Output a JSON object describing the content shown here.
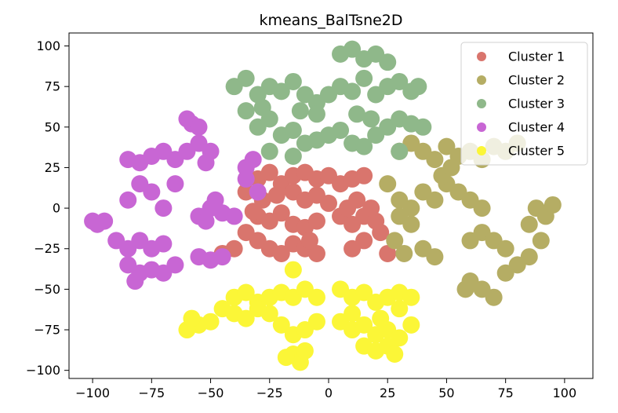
{
  "chart_data": {
    "type": "scatter",
    "title": "kmeans_BalTsne2D",
    "xlabel": "",
    "ylabel": "",
    "xlim": [
      -110,
      112
    ],
    "ylim": [
      -105,
      108
    ],
    "xticks": [
      -100,
      -75,
      -50,
      -25,
      0,
      25,
      50,
      75,
      100
    ],
    "yticks": [
      100,
      75,
      50,
      25,
      0,
      -25,
      -50,
      -75,
      -100
    ],
    "xtick_labels": [
      "−100",
      "−75",
      "−50",
      "−25",
      "0",
      "25",
      "50",
      "75",
      "100"
    ],
    "ytick_labels": [
      "100",
      "75",
      "50",
      "25",
      "0",
      "−25",
      "−50",
      "−75",
      "−100"
    ],
    "grid": false,
    "legend_position": "top-right",
    "series": [
      {
        "name": "Cluster 1",
        "color": "#d9756d",
        "points": [
          [
            -30,
            18
          ],
          [
            -25,
            22
          ],
          [
            -20,
            15
          ],
          [
            -15,
            20
          ],
          [
            -10,
            22
          ],
          [
            -5,
            18
          ],
          [
            0,
            20
          ],
          [
            5,
            15
          ],
          [
            10,
            18
          ],
          [
            15,
            20
          ],
          [
            -28,
            5
          ],
          [
            -22,
            8
          ],
          [
            -15,
            10
          ],
          [
            -10,
            5
          ],
          [
            -5,
            8
          ],
          [
            0,
            3
          ],
          [
            -30,
            -5
          ],
          [
            -25,
            -8
          ],
          [
            -20,
            -3
          ],
          [
            -15,
            -10
          ],
          [
            -10,
            -12
          ],
          [
            -5,
            -8
          ],
          [
            -35,
            -15
          ],
          [
            -30,
            -20
          ],
          [
            -25,
            -25
          ],
          [
            -20,
            -28
          ],
          [
            -15,
            -22
          ],
          [
            -10,
            -25
          ],
          [
            -5,
            -28
          ],
          [
            -40,
            -25
          ],
          [
            -45,
            -28
          ],
          [
            5,
            -5
          ],
          [
            10,
            -10
          ],
          [
            15,
            -5
          ],
          [
            20,
            -8
          ],
          [
            8,
            0
          ],
          [
            12,
            5
          ],
          [
            18,
            0
          ],
          [
            22,
            -15
          ],
          [
            15,
            -20
          ],
          [
            10,
            -25
          ],
          [
            25,
            -28
          ],
          [
            -35,
            10
          ],
          [
            -32,
            -2
          ],
          [
            -8,
            -20
          ]
        ]
      },
      {
        "name": "Cluster 2",
        "color": "#b5ad64",
        "points": [
          [
            30,
            35
          ],
          [
            35,
            40
          ],
          [
            40,
            35
          ],
          [
            45,
            30
          ],
          [
            50,
            38
          ],
          [
            55,
            32
          ],
          [
            60,
            35
          ],
          [
            65,
            30
          ],
          [
            70,
            38
          ],
          [
            75,
            35
          ],
          [
            80,
            40
          ],
          [
            25,
            15
          ],
          [
            30,
            5
          ],
          [
            35,
            0
          ],
          [
            40,
            10
          ],
          [
            45,
            5
          ],
          [
            50,
            15
          ],
          [
            55,
            10
          ],
          [
            60,
            5
          ],
          [
            65,
            0
          ],
          [
            30,
            -5
          ],
          [
            35,
            -10
          ],
          [
            28,
            -20
          ],
          [
            32,
            -28
          ],
          [
            40,
            -25
          ],
          [
            45,
            -30
          ],
          [
            60,
            -20
          ],
          [
            65,
            -15
          ],
          [
            70,
            -20
          ],
          [
            75,
            -25
          ],
          [
            85,
            -10
          ],
          [
            88,
            0
          ],
          [
            92,
            -5
          ],
          [
            95,
            2
          ],
          [
            90,
            -20
          ],
          [
            85,
            -30
          ],
          [
            80,
            -35
          ],
          [
            60,
            -45
          ],
          [
            65,
            -50
          ],
          [
            70,
            -55
          ],
          [
            58,
            -50
          ],
          [
            75,
            -40
          ],
          [
            48,
            20
          ],
          [
            52,
            25
          ]
        ]
      },
      {
        "name": "Cluster 3",
        "color": "#8fb88a",
        "points": [
          [
            -40,
            75
          ],
          [
            -35,
            80
          ],
          [
            -30,
            70
          ],
          [
            -25,
            75
          ],
          [
            -20,
            72
          ],
          [
            -15,
            78
          ],
          [
            -10,
            70
          ],
          [
            -5,
            65
          ],
          [
            0,
            70
          ],
          [
            5,
            75
          ],
          [
            10,
            72
          ],
          [
            15,
            80
          ],
          [
            20,
            70
          ],
          [
            25,
            75
          ],
          [
            30,
            78
          ],
          [
            35,
            72
          ],
          [
            38,
            75
          ],
          [
            5,
            95
          ],
          [
            10,
            98
          ],
          [
            15,
            92
          ],
          [
            20,
            95
          ],
          [
            25,
            90
          ],
          [
            -30,
            50
          ],
          [
            -25,
            55
          ],
          [
            -20,
            45
          ],
          [
            -15,
            48
          ],
          [
            -10,
            40
          ],
          [
            -5,
            42
          ],
          [
            0,
            45
          ],
          [
            5,
            48
          ],
          [
            10,
            40
          ],
          [
            15,
            38
          ],
          [
            20,
            45
          ],
          [
            25,
            50
          ],
          [
            30,
            55
          ],
          [
            35,
            52
          ],
          [
            40,
            50
          ],
          [
            -35,
            60
          ],
          [
            -28,
            62
          ],
          [
            -12,
            60
          ],
          [
            -5,
            58
          ],
          [
            12,
            58
          ],
          [
            18,
            55
          ],
          [
            -25,
            35
          ],
          [
            -15,
            32
          ],
          [
            30,
            35
          ]
        ]
      },
      {
        "name": "Cluster 4",
        "color": "#c866d4",
        "points": [
          [
            -100,
            -8
          ],
          [
            -98,
            -10
          ],
          [
            -95,
            -8
          ],
          [
            -85,
            30
          ],
          [
            -80,
            28
          ],
          [
            -75,
            32
          ],
          [
            -70,
            35
          ],
          [
            -65,
            30
          ],
          [
            -60,
            35
          ],
          [
            -58,
            52
          ],
          [
            -60,
            55
          ],
          [
            -55,
            50
          ],
          [
            -55,
            40
          ],
          [
            -50,
            35
          ],
          [
            -52,
            28
          ],
          [
            -80,
            15
          ],
          [
            -75,
            10
          ],
          [
            -85,
            5
          ],
          [
            -70,
            0
          ],
          [
            -65,
            15
          ],
          [
            -55,
            -5
          ],
          [
            -50,
            0
          ],
          [
            -45,
            -3
          ],
          [
            -40,
            -5
          ],
          [
            -48,
            5
          ],
          [
            -52,
            -8
          ],
          [
            -90,
            -20
          ],
          [
            -85,
            -25
          ],
          [
            -80,
            -20
          ],
          [
            -75,
            -25
          ],
          [
            -70,
            -22
          ],
          [
            -85,
            -35
          ],
          [
            -80,
            -40
          ],
          [
            -75,
            -38
          ],
          [
            -70,
            -40
          ],
          [
            -65,
            -35
          ],
          [
            -82,
            -45
          ],
          [
            -55,
            -30
          ],
          [
            -50,
            -32
          ],
          [
            -45,
            -30
          ],
          [
            -35,
            25
          ],
          [
            -32,
            30
          ],
          [
            -35,
            18
          ],
          [
            -30,
            10
          ]
        ]
      },
      {
        "name": "Cluster 5",
        "color": "#fbf637",
        "points": [
          [
            -40,
            -55
          ],
          [
            -35,
            -52
          ],
          [
            -30,
            -58
          ],
          [
            -25,
            -55
          ],
          [
            -20,
            -52
          ],
          [
            -15,
            -55
          ],
          [
            -10,
            -50
          ],
          [
            -5,
            -55
          ],
          [
            -45,
            -62
          ],
          [
            -40,
            -65
          ],
          [
            -35,
            -68
          ],
          [
            -30,
            -62
          ],
          [
            -25,
            -65
          ],
          [
            -55,
            -72
          ],
          [
            -60,
            -75
          ],
          [
            -58,
            -68
          ],
          [
            -50,
            -70
          ],
          [
            -20,
            -72
          ],
          [
            -15,
            -78
          ],
          [
            -10,
            -75
          ],
          [
            -5,
            -70
          ],
          [
            -15,
            -90
          ],
          [
            -12,
            -95
          ],
          [
            -10,
            -88
          ],
          [
            -18,
            -92
          ],
          [
            -15,
            -38
          ],
          [
            5,
            -50
          ],
          [
            10,
            -55
          ],
          [
            15,
            -52
          ],
          [
            20,
            -58
          ],
          [
            25,
            -55
          ],
          [
            30,
            -52
          ],
          [
            35,
            -55
          ],
          [
            30,
            -62
          ],
          [
            5,
            -70
          ],
          [
            10,
            -75
          ],
          [
            15,
            -72
          ],
          [
            20,
            -78
          ],
          [
            25,
            -75
          ],
          [
            30,
            -80
          ],
          [
            35,
            -72
          ],
          [
            15,
            -85
          ],
          [
            20,
            -88
          ],
          [
            25,
            -85
          ],
          [
            28,
            -90
          ],
          [
            10,
            -65
          ],
          [
            22,
            -68
          ]
        ]
      }
    ]
  }
}
